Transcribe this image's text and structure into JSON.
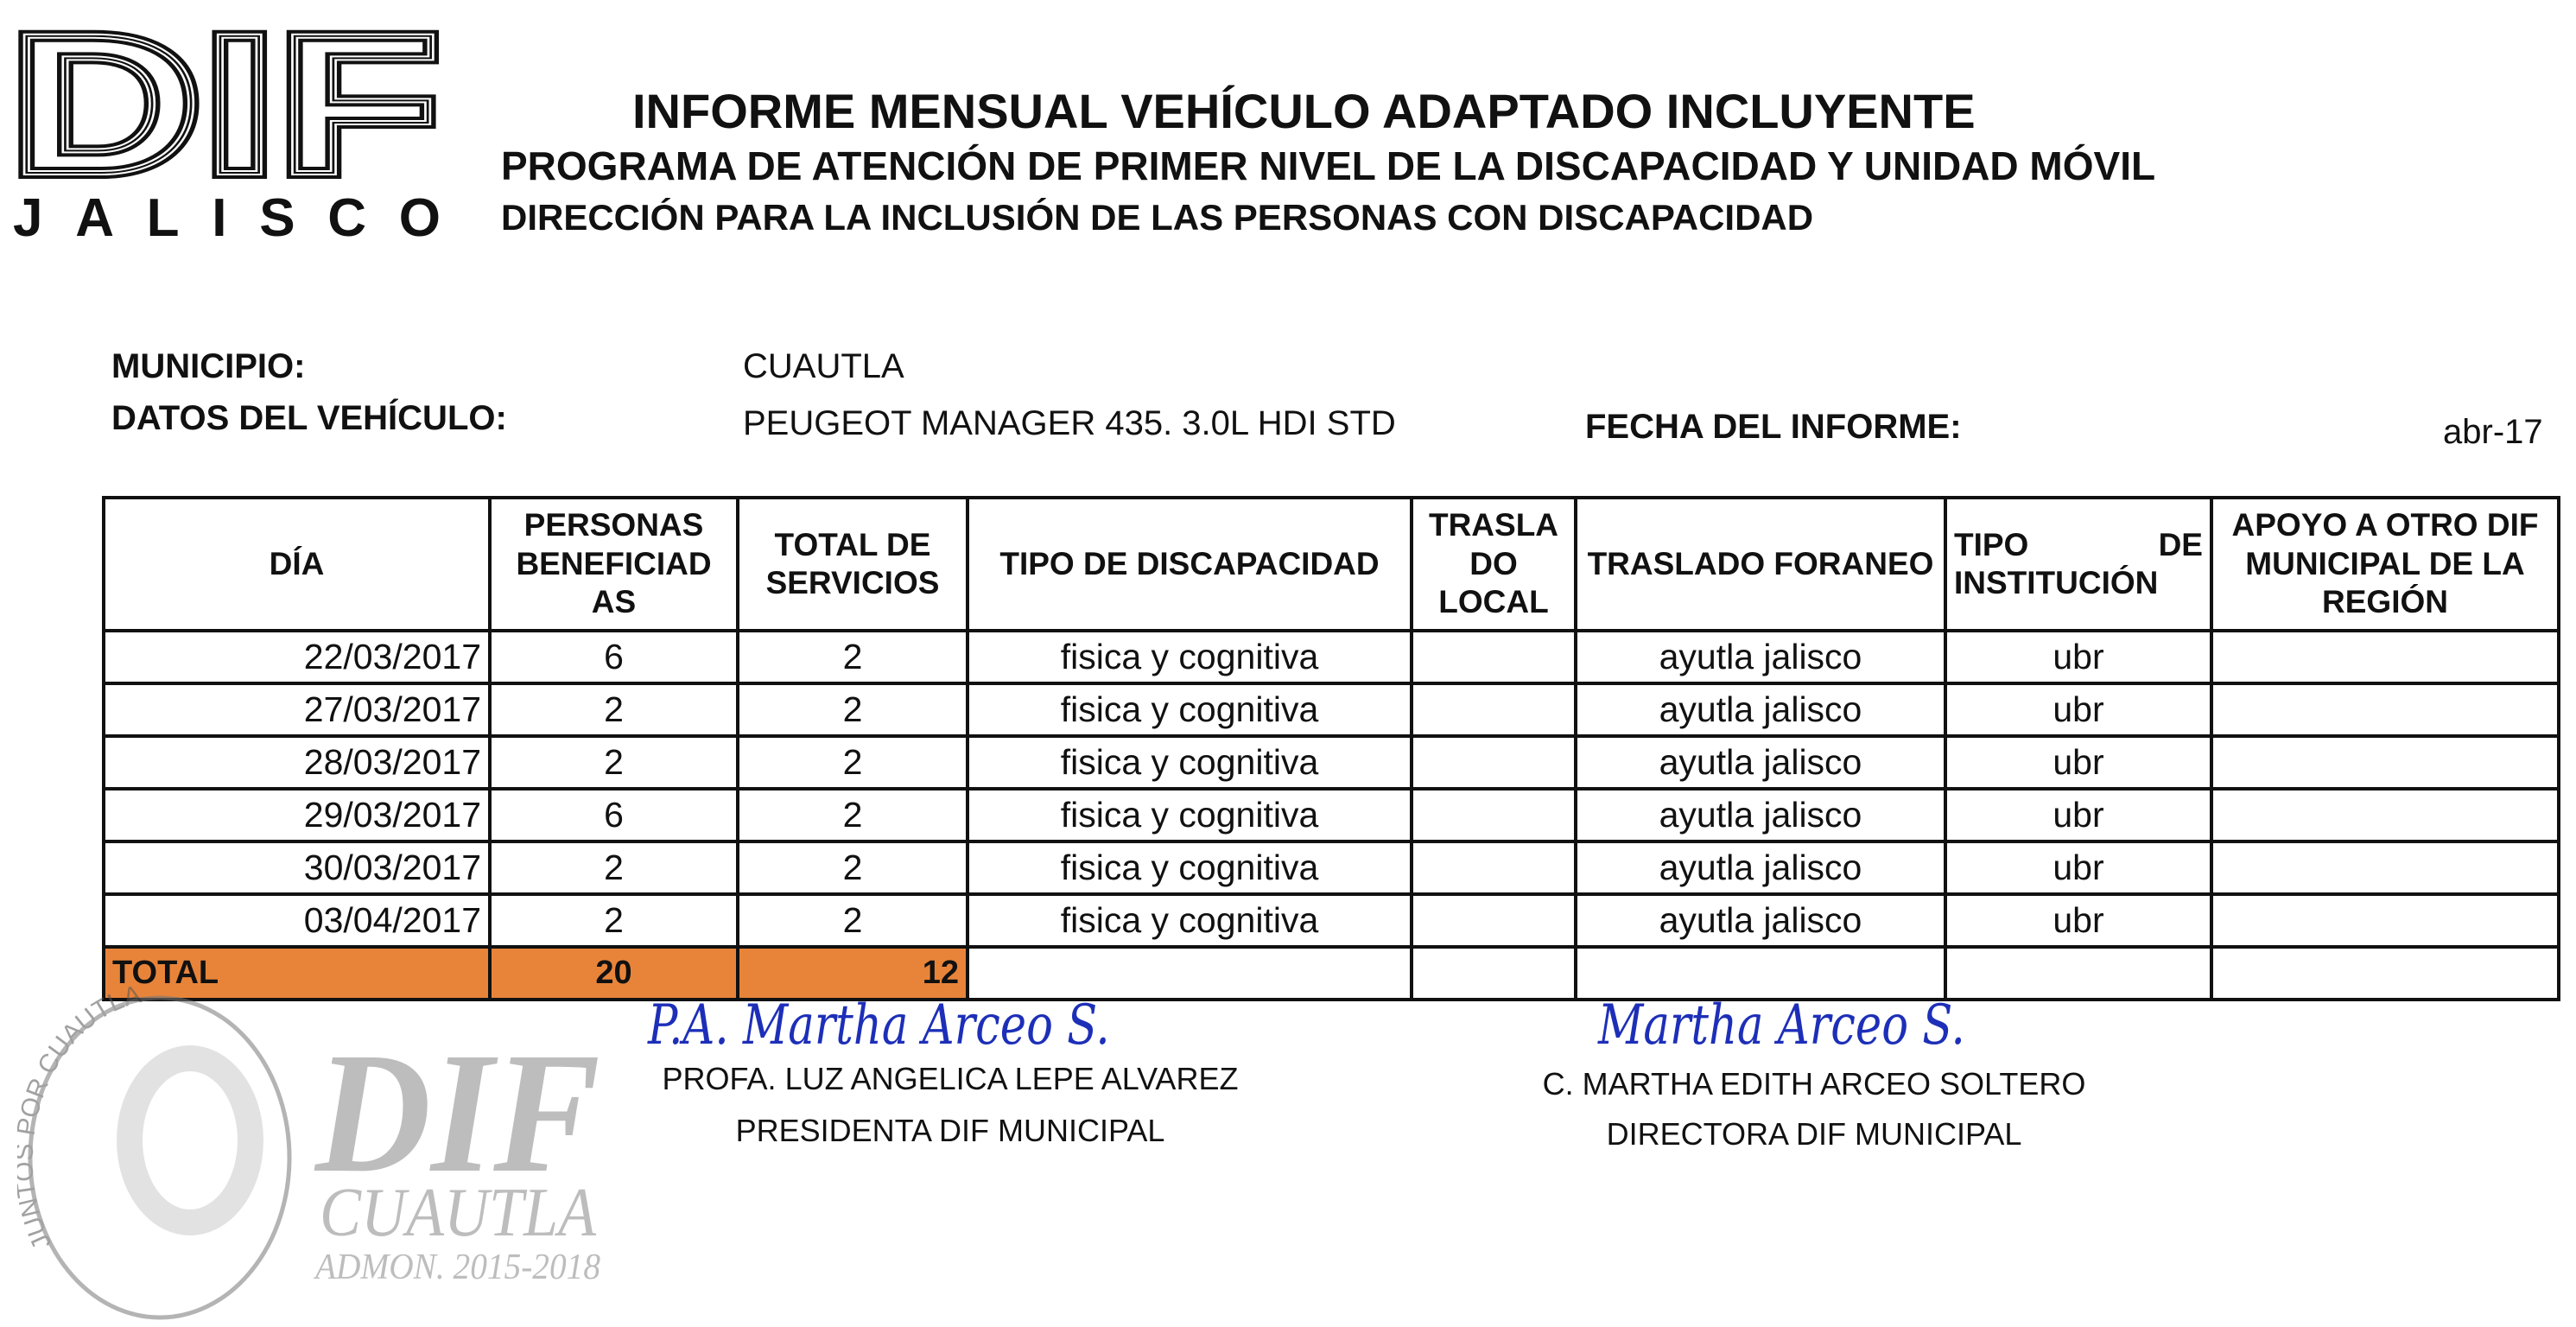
{
  "logo": {
    "text": "DIF",
    "subtext": "JALISCO"
  },
  "header": {
    "title": "INFORME MENSUAL VEHÍCULO ADAPTADO INCLUYENTE",
    "subtitle": "PROGRAMA DE ATENCIÓN DE PRIMER NIVEL DE LA DISCAPACIDAD Y UNIDAD MÓVIL",
    "direction": "DIRECCIÓN PARA LA INCLUSIÓN DE LAS PERSONAS CON DISCAPACIDAD"
  },
  "info": {
    "municipio_label": "MUNICIPIO:",
    "municipio": "CUAUTLA",
    "vehiculo_label": "DATOS DEL VEHÍCULO:",
    "vehiculo": "PEUGEOT MANAGER 435. 3.0L HDI STD",
    "fecha_label": "FECHA DEL INFORME:",
    "fecha": "abr-17"
  },
  "table": {
    "headers": [
      "DÍA",
      "PERSONAS BENEFICIAD AS",
      "TOTAL DE SERVICIOS",
      "TIPO DE DISCAPACIDAD",
      "TRASLA DO LOCAL",
      "TRASLADO FORANEO",
      "TIPO DE INSTITUCIÓN",
      "APOYO A OTRO DIF MUNICIPAL DE LA REGIÓN"
    ],
    "rows": [
      [
        "22/03/2017",
        "6",
        "2",
        "fisica y cognitiva",
        "",
        "ayutla jalisco",
        "ubr",
        ""
      ],
      [
        "27/03/2017",
        "2",
        "2",
        "fisica y cognitiva",
        "",
        "ayutla jalisco",
        "ubr",
        ""
      ],
      [
        "28/03/2017",
        "2",
        "2",
        "fisica y cognitiva",
        "",
        "ayutla jalisco",
        "ubr",
        ""
      ],
      [
        "29/03/2017",
        "6",
        "2",
        "fisica y cognitiva",
        "",
        "ayutla jalisco",
        "ubr",
        ""
      ],
      [
        "30/03/2017",
        "2",
        "2",
        "fisica y cognitiva",
        "",
        "ayutla jalisco",
        "ubr",
        ""
      ],
      [
        "03/04/2017",
        "2",
        "2",
        "fisica y cognitiva",
        "",
        "ayutla jalisco",
        "ubr",
        ""
      ]
    ],
    "total": {
      "label": "TOTAL",
      "personas": "20",
      "servicios": "12"
    },
    "total_color": "#e8843a"
  },
  "signatures": {
    "left": {
      "handwritten": "P.A. Martha Arceo S.",
      "name": "PROFA. LUZ ANGELICA LEPE ALVAREZ",
      "role": "PRESIDENTA DIF MUNICIPAL"
    },
    "right": {
      "handwritten": "Martha Arceo S.",
      "name": "C. MARTHA EDITH ARCEO SOLTERO",
      "role": "DIRECTORA DIF MUNICIPAL"
    }
  },
  "stamp": {
    "ring": "JUNTOS POR CUAUTLA",
    "title": "DIF",
    "city": "CUAUTLA",
    "admin": "ADMON. 2015-2018"
  }
}
